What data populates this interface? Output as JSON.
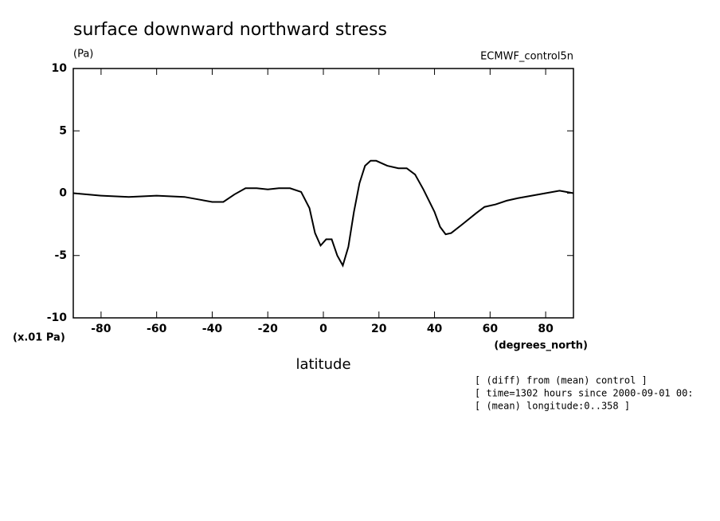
{
  "chart_data": {
    "type": "line",
    "title": "surface downward northward stress",
    "y_unit": "(Pa)",
    "dataset": "ECMWF_control5n",
    "y_scale_note": "(x.01 Pa)",
    "x_unit": "(degrees_north)",
    "x_label": "latitude",
    "annotations": [
      "[ (diff) from (mean) control ]",
      "[ time=1302 hours since 2000-09-01 00:",
      "[ (mean) longitude:0..358 ]"
    ],
    "x": [
      -90,
      -80,
      -70,
      -60,
      -50,
      -45,
      -40,
      -36,
      -32,
      -28,
      -24,
      -20,
      -16,
      -12,
      -8,
      -5,
      -3,
      -1,
      1,
      3,
      5,
      7,
      9,
      11,
      13,
      15,
      17,
      19,
      21,
      23,
      27,
      30,
      33,
      36,
      40,
      42,
      44,
      46,
      50,
      55,
      58,
      62,
      66,
      70,
      75,
      80,
      85,
      90
    ],
    "series": [
      {
        "name": null,
        "color": "#000000",
        "values": [
          0,
          -0.2,
          -0.3,
          -0.2,
          -0.3,
          -0.5,
          -0.7,
          -0.7,
          -0.1,
          0.4,
          0.4,
          0.3,
          0.4,
          0.4,
          0.1,
          -1.2,
          -3.2,
          -4.2,
          -3.7,
          -3.7,
          -5.0,
          -5.8,
          -4.3,
          -1.5,
          0.8,
          2.2,
          2.6,
          2.6,
          2.4,
          2.2,
          2.0,
          2.0,
          1.5,
          0.3,
          -1.5,
          -2.7,
          -3.3,
          -3.2,
          -2.5,
          -1.6,
          -1.1,
          -0.9,
          -0.6,
          -0.4,
          -0.2,
          0,
          0.2,
          0
        ]
      }
    ],
    "xlim": [
      -90,
      90
    ],
    "ylim": [
      -10,
      10
    ],
    "xticks": [
      -80,
      -60,
      -40,
      -20,
      0,
      20,
      40,
      60,
      80
    ],
    "yticks": [
      -10,
      -5,
      0,
      5,
      10
    ],
    "grid": false
  }
}
